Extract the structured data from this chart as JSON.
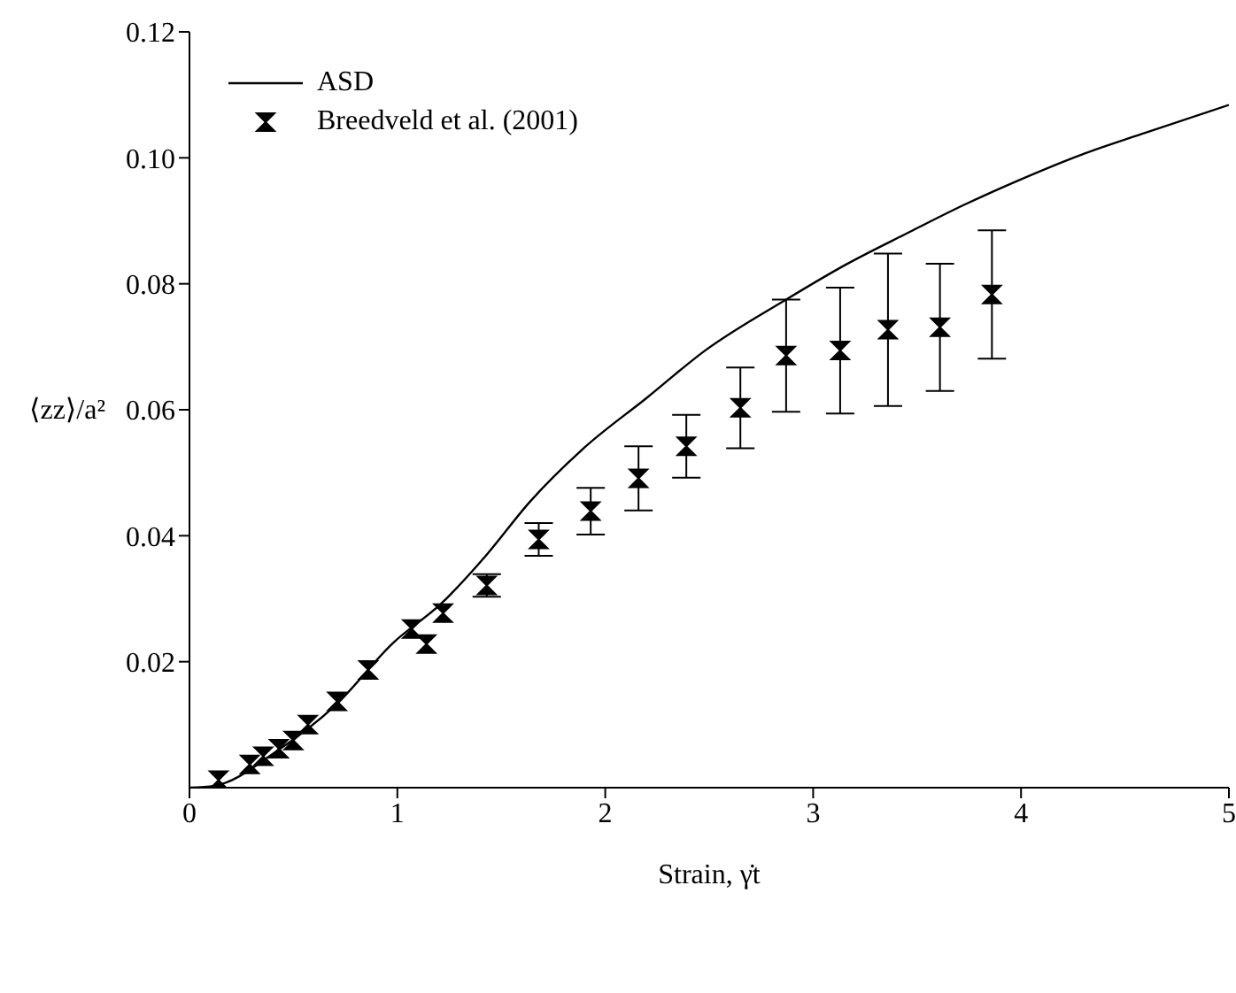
{
  "chart_data": {
    "type": "scatter",
    "xlabel": "Strain, γ̇t",
    "ylabel": "⟨zz⟩/a²",
    "xlim": [
      0,
      5
    ],
    "ylim": [
      0,
      0.12
    ],
    "xticks": [
      0,
      1,
      2,
      3,
      4,
      5
    ],
    "yticks": [
      0.02,
      0.04,
      0.06,
      0.08,
      {
        "value": 0.1,
        "label": "0.10"
      },
      0.12
    ],
    "legend": "top left",
    "series": [
      {
        "name": "ASD",
        "type": "line",
        "color": "#000000",
        "marker": "none",
        "line_style": "solid",
        "x": [
          0,
          0.12,
          0.42,
          0.7,
          0.98,
          1.21,
          1.43,
          1.635,
          1.9,
          2.2,
          2.48,
          2.87,
          3.16,
          3.45,
          3.73,
          4.0,
          4.29,
          4.6,
          5.0
        ],
        "values": [
          0,
          0.0003,
          0.0058,
          0.013,
          0.023,
          0.0292,
          0.037,
          0.0453,
          0.054,
          0.0619,
          0.0694,
          0.0775,
          0.0831,
          0.088,
          0.0926,
          0.0966,
          0.1005,
          0.104,
          0.1084
        ]
      },
      {
        "name": "Breedveld et al. (2001)",
        "color": "#000000",
        "x": [
          0.14,
          0.29,
          0.355,
          0.43,
          0.5,
          0.57,
          0.71,
          0.86,
          1.07,
          1.14,
          1.22,
          1.43,
          1.68,
          1.93,
          2.16,
          2.39,
          2.65,
          2.87,
          3.13,
          3.36,
          3.61,
          3.86
        ],
        "values": [
          0.0012,
          0.0037,
          0.005,
          0.0062,
          0.0075,
          0.01,
          0.0137,
          0.0187,
          0.0252,
          0.0228,
          0.0277,
          0.0321,
          0.0394,
          0.0439,
          0.0491,
          0.0542,
          0.0603,
          0.0686,
          0.0694,
          0.0727,
          0.0731,
          0.0783
        ],
        "errors": [
          null,
          null,
          null,
          null,
          null,
          null,
          null,
          null,
          null,
          null,
          null,
          0.0018,
          0.0026,
          0.0037,
          0.0051,
          0.005,
          0.0064,
          0.0089,
          0.01,
          0.0121,
          0.0101,
          0.0102
        ]
      }
    ]
  }
}
